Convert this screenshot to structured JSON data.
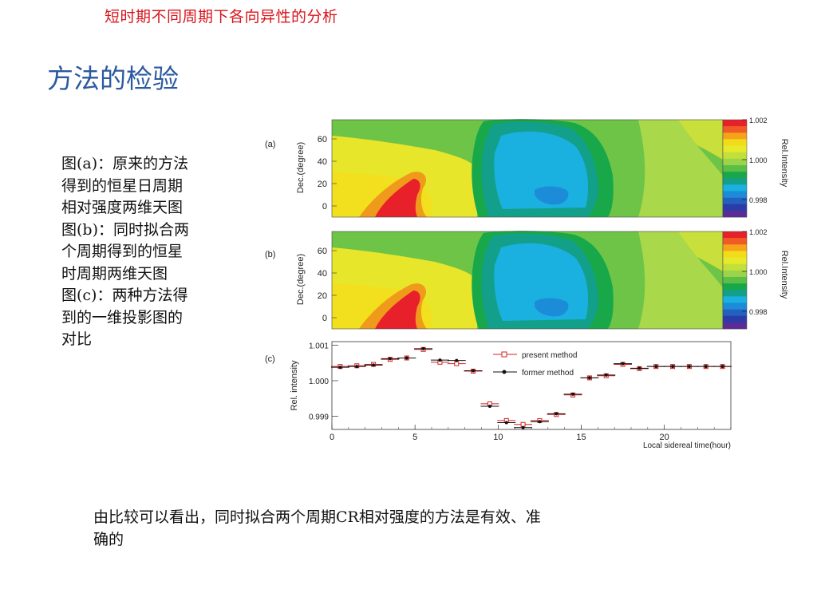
{
  "header": {
    "topic": "短时期不同周期下各向异性的分析",
    "title": "方法的检验"
  },
  "description": {
    "lines": [
      "图(a)：原来的方法",
      "得到的恒星日周期",
      "相对强度两维天图",
      "图(b)：同时拟合两",
      "个周期得到的恒星",
      "时周期两维天图",
      "图(c)：两种方法得",
      "到的一维投影图的",
      "对比"
    ]
  },
  "conclusion": {
    "line1": "由比较可以看出，同时拟合两个周期CR相对强度的方法是有效、准",
    "line2": "确的"
  },
  "figure": {
    "panel_a_label": "(a)",
    "panel_b_label": "(b)",
    "panel_c_label": "(c)",
    "map_ylabel": "Dec.(degree)",
    "map_yticks": [
      "60",
      "40",
      "20",
      "0"
    ],
    "colorbar_label": "Rel.Intensity",
    "colorbar_ticks": [
      "1.002",
      "1.000",
      "0.998"
    ],
    "colorbar_colors": [
      "#e8202a",
      "#f05a24",
      "#f7a21b",
      "#f2dc1a",
      "#e6ea2a",
      "#c3df3a",
      "#9bd44a",
      "#5bbf46",
      "#18a84a",
      "#13a08a",
      "#1ab0e0",
      "#1c8cd8",
      "#2460c0",
      "#2a3ca8",
      "#5a2c98"
    ]
  },
  "chart_data": {
    "type": "scatter",
    "xlabel": "Local sidereal time(hour)",
    "ylabel": "Rel. intensity",
    "xlim": [
      0,
      24
    ],
    "ylim": [
      0.99863,
      1.0011
    ],
    "xticks": [
      "0",
      "5",
      "10",
      "15",
      "20"
    ],
    "yticks": [
      "1.001",
      "1.000",
      "0.999"
    ],
    "legend_position": "top-center",
    "x": [
      0.5,
      1.5,
      2.5,
      3.5,
      4.5,
      5.5,
      6.5,
      7.5,
      8.5,
      9.5,
      10.5,
      11.5,
      12.5,
      13.5,
      14.5,
      15.5,
      16.5,
      17.5,
      18.5,
      19.5,
      20.5,
      21.5,
      22.5,
      23.5
    ],
    "series": [
      {
        "name": "present method",
        "color": "#d42020",
        "marker": "open-square",
        "values": [
          1.0004,
          1.00042,
          1.00046,
          1.0006,
          1.00064,
          1.00088,
          1.00052,
          1.00048,
          1.00027,
          0.99935,
          0.99888,
          0.99877,
          0.99888,
          0.99905,
          0.9996,
          1.00008,
          1.00014,
          1.00046,
          1.00034,
          1.0004,
          1.0004,
          1.0004,
          1.0004,
          1.0004
        ]
      },
      {
        "name": "former  method",
        "color": "#111111",
        "marker": "filled-circle",
        "values": [
          1.00038,
          1.0004,
          1.00044,
          1.00062,
          1.00064,
          1.0009,
          1.00058,
          1.00057,
          1.00028,
          0.99928,
          0.99882,
          0.99868,
          0.99885,
          0.99907,
          0.99962,
          1.00008,
          1.00016,
          1.00048,
          1.00035,
          1.0004,
          1.0004,
          1.0004,
          1.0004,
          1.0004
        ]
      }
    ]
  }
}
